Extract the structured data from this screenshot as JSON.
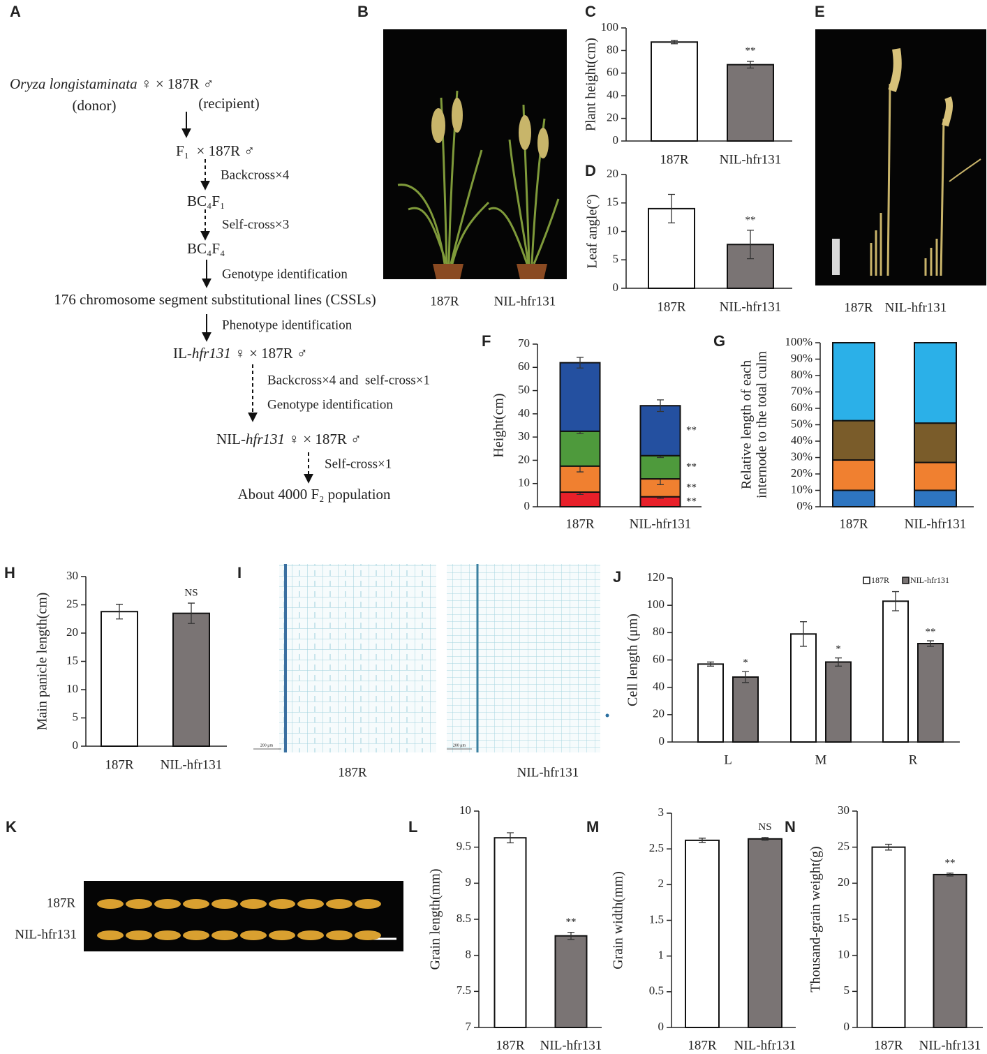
{
  "panel_labels": [
    "A",
    "B",
    "C",
    "D",
    "E",
    "F",
    "G",
    "H",
    "I",
    "J",
    "K",
    "L",
    "M",
    "N"
  ],
  "flowchart": {
    "nodes": [
      {
        "parts": [
          {
            "text": "Oryza longistaminata",
            "italic": true
          },
          {
            "text": " ♀ × 187R ♂"
          }
        ]
      },
      {
        "parts": [
          {
            "text": "(donor)"
          }
        ]
      },
      {
        "parts": [
          {
            "text": "(recipient)"
          }
        ]
      },
      {
        "parts": [
          {
            "text": "F₁  × 187R ♂"
          }
        ]
      },
      {
        "parts": [
          {
            "text": "BC₄F₁"
          }
        ]
      },
      {
        "parts": [
          {
            "text": "BC₄F₄"
          }
        ]
      },
      {
        "parts": [
          {
            "text": "176 chromosome segment substitutional lines (CSSLs)"
          }
        ]
      },
      {
        "parts": [
          {
            "text": "IL-"
          },
          {
            "text": "hfr131",
            "italic": true
          },
          {
            "text": " ♀ × 187R ♂"
          }
        ]
      },
      {
        "parts": [
          {
            "text": "NIL-"
          },
          {
            "text": "hfr131",
            "italic": true
          },
          {
            "text": " ♀ × 187R ♂"
          }
        ]
      },
      {
        "parts": [
          {
            "text": "About 4000 F₂ population"
          }
        ]
      }
    ],
    "operations": [
      "Backcross×4",
      "Self-cross×3",
      "Genotype identification",
      "Phenotype identification",
      "Backcross×4 and  self-cross×1",
      "Genotype identification",
      "Self-cross×1"
    ]
  },
  "photos": {
    "B": {
      "labels": [
        "187R",
        "NIL-hfr131"
      ]
    },
    "E": {
      "labels": [
        "187R",
        "NIL-hfr131"
      ]
    },
    "I": {
      "labels": [
        "187R",
        "NIL-hfr131"
      ],
      "scale_bars": [
        "200 μm",
        "200 μm"
      ]
    },
    "K": {
      "labels": [
        "187R",
        "NIL-hfr131"
      ]
    }
  },
  "chart_data": [
    {
      "type": "bar",
      "ylabel": "Plant height(cm)",
      "categories": [
        "187R",
        "NIL-hfr131"
      ],
      "values": [
        87.5,
        67.5
      ],
      "errors": [
        1.5,
        3
      ],
      "annotations": [
        null,
        "**"
      ],
      "colors": [
        "#ffffff",
        "#7a7474"
      ],
      "ylim": [
        0,
        100
      ],
      "yticks": [
        0,
        20,
        40,
        60,
        80,
        100
      ]
    },
    {
      "type": "bar",
      "ylabel": "Leaf angle(°)",
      "categories": [
        "187R",
        "NIL-hfr131"
      ],
      "values": [
        14,
        7.7
      ],
      "errors": [
        2.5,
        2.5
      ],
      "annotations": [
        null,
        "**"
      ],
      "colors": [
        "#ffffff",
        "#7a7474"
      ],
      "ylim": [
        0,
        20
      ],
      "yticks": [
        0,
        5,
        10,
        15,
        20
      ]
    },
    {
      "type": "stacked_bar",
      "ylabel": "Height(cm)",
      "categories": [
        "187R",
        "NIL-hfr131"
      ],
      "series": [
        {
          "color": "#e8202a",
          "values": [
            6.3,
            4.3
          ],
          "errors": [
            1,
            0.7
          ],
          "annotations": [
            null,
            "**"
          ]
        },
        {
          "color": "#f08030",
          "values": [
            11.2,
            7.7
          ],
          "errors": [
            2.5,
            2.5
          ],
          "annotations": [
            null,
            "**"
          ]
        },
        {
          "color": "#4e9a3c",
          "values": [
            15,
            10
          ],
          "errors": [
            1,
            0.8
          ],
          "annotations": [
            null,
            "**"
          ]
        },
        {
          "color": "#2450a0",
          "values": [
            29.5,
            21.5
          ],
          "errors": [
            2.3,
            2.5
          ],
          "annotations": [
            null,
            "**"
          ]
        }
      ],
      "ylim": [
        0,
        70
      ],
      "yticks": [
        0,
        10,
        20,
        30,
        40,
        50,
        60,
        70
      ]
    },
    {
      "type": "stacked_bar",
      "ylabel": [
        "Relative length of each",
        "internode to the total culm"
      ],
      "categories": [
        "187R",
        "NIL-hfr131"
      ],
      "series": [
        {
          "color": "#2e75c0",
          "values": [
            10,
            10
          ]
        },
        {
          "color": "#f08030",
          "values": [
            18.5,
            17
          ]
        },
        {
          "color": "#7a5c2a",
          "values": [
            24,
            24
          ]
        },
        {
          "color": "#2bb0e8",
          "values": [
            47.5,
            49
          ]
        }
      ],
      "ylim": [
        0,
        100
      ],
      "yticks": [
        {
          "value": 0,
          "label": "0%"
        },
        {
          "value": 10,
          "label": "10%"
        },
        {
          "value": 20,
          "label": "20%"
        },
        {
          "value": 30,
          "label": "30%"
        },
        {
          "value": 40,
          "label": "40%"
        },
        {
          "value": 50,
          "label": "50%"
        },
        {
          "value": 60,
          "label": "60%"
        },
        {
          "value": 70,
          "label": "70%"
        },
        {
          "value": 80,
          "label": "80%"
        },
        {
          "value": 90,
          "label": "90%"
        },
        {
          "value": 100,
          "label": "100%"
        }
      ]
    },
    {
      "type": "bar",
      "ylabel": "Main panicle length(cm)",
      "categories": [
        "187R",
        "NIL-hfr131"
      ],
      "values": [
        23.8,
        23.5
      ],
      "errors": [
        1.3,
        1.8
      ],
      "annotations": [
        null,
        "NS"
      ],
      "colors": [
        "#ffffff",
        "#7a7474"
      ],
      "ylim": [
        0,
        30
      ],
      "yticks": [
        0,
        5,
        10,
        15,
        20,
        25,
        30
      ]
    },
    {
      "type": "grouped_bar",
      "ylabel": "Cell length (μm)",
      "categories": [
        "L",
        "M",
        "R"
      ],
      "series": [
        {
          "name": "187R",
          "color": "#ffffff",
          "values": [
            57,
            79,
            103
          ],
          "errors": [
            1.5,
            9,
            7
          ]
        },
        {
          "name": "NIL-hfr131",
          "color": "#7a7474",
          "values": [
            47.5,
            58.5,
            72
          ],
          "errors": [
            4,
            3,
            2
          ],
          "annotations": [
            "*",
            "*",
            "**"
          ]
        }
      ],
      "ylim": [
        0,
        120
      ],
      "yticks": [
        0,
        20,
        40,
        60,
        80,
        100,
        120
      ]
    },
    {
      "type": "bar",
      "ylabel": "Grain length(mm)",
      "categories": [
        "187R",
        "NIL-hfr131"
      ],
      "values": [
        9.63,
        8.27
      ],
      "errors": [
        0.07,
        0.05
      ],
      "annotations": [
        null,
        "**"
      ],
      "colors": [
        "#ffffff",
        "#7a7474"
      ],
      "ylim": [
        7,
        10
      ],
      "yticks": [
        7,
        7.5,
        8,
        8.5,
        9,
        9.5,
        10
      ]
    },
    {
      "type": "bar",
      "ylabel": "Grain width(mm)",
      "categories": [
        "187R",
        "NIL-hfr131"
      ],
      "values": [
        2.62,
        2.64
      ],
      "errors": [
        0.03,
        0.02
      ],
      "annotations": [
        null,
        "NS"
      ],
      "colors": [
        "#ffffff",
        "#7a7474"
      ],
      "ylim": [
        0,
        3
      ],
      "yticks": [
        0,
        0.5,
        1,
        1.5,
        2,
        2.5,
        3
      ]
    },
    {
      "type": "bar",
      "ylabel": "Thousand-grain weight(g)",
      "categories": [
        "187R",
        "NIL-hfr131"
      ],
      "values": [
        25,
        21.2
      ],
      "errors": [
        0.4,
        0.2
      ],
      "annotations": [
        null,
        "**"
      ],
      "colors": [
        "#ffffff",
        "#7a7474"
      ],
      "ylim": [
        0,
        30
      ],
      "yticks": [
        0,
        5,
        10,
        15,
        20,
        25,
        30
      ]
    }
  ]
}
